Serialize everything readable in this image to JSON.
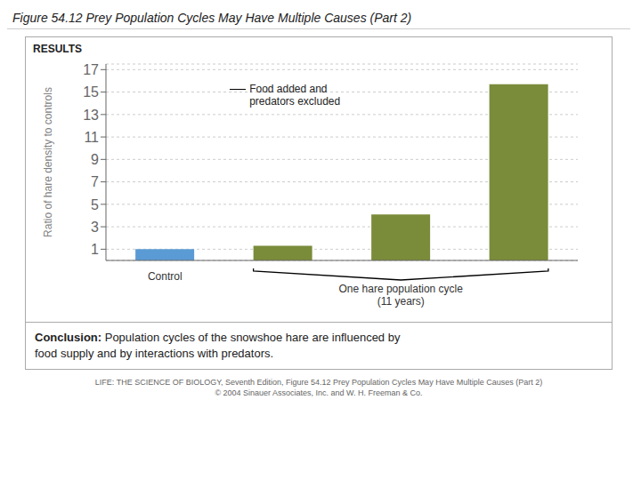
{
  "chart_data": {
    "type": "bar",
    "title": "Figure 54.12  Prey Population Cycles May Have Multiple Causes (Part 2)",
    "categories": [
      "Control",
      null,
      null,
      null
    ],
    "values": [
      1.0,
      1.3,
      4.1,
      15.7
    ],
    "colors": [
      "#5b9bd5",
      "#7a8c3a",
      "#7a8c3a",
      "#7a8c3a"
    ],
    "ylabel": "Ratio of hare density to controls",
    "ylim": [
      0,
      17.5
    ],
    "yticks": [
      1,
      3,
      5,
      7,
      9,
      11,
      13,
      15,
      17
    ],
    "grid": true,
    "annotations": [
      "RESULTS",
      "Food added and\npredators excluded",
      "One hare population cycle\n(11 years)",
      "Conclusion:",
      " Population cycles of the snowshoe hare are influenced by",
      "food supply and by interactions with predators.",
      "LIFE: THE SCIENCE OF BIOLOGY, Seventh Edition, Figure 54.12 Prey Population Cycles May Have Multiple Causes (Part 2)",
      "© 2004 Sinauer Associates, Inc. and W. H. Freeman & Co."
    ]
  }
}
